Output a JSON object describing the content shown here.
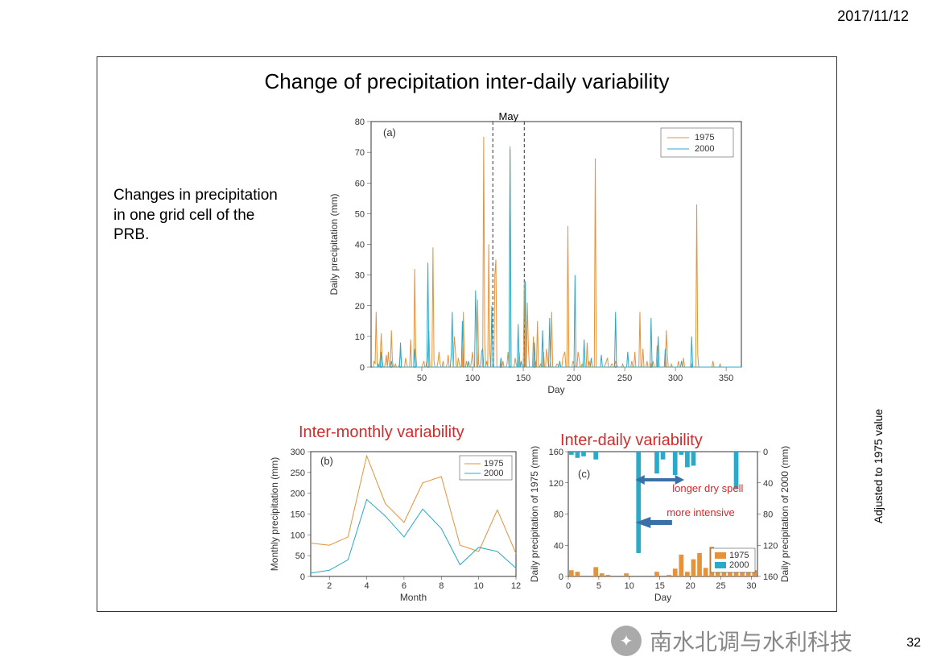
{
  "header": {
    "date": "2017/11/12"
  },
  "slide": {
    "title": "Change of precipitation inter-daily variability",
    "side_note": "Changes in precipitation in one grid cell of the PRB.",
    "page_number": "32"
  },
  "colors": {
    "s1975": "#e5923b",
    "s2000": "#2aa9c9",
    "annotation": "#d12b2b",
    "arrow": "#3b6fa8"
  },
  "chart_a": {
    "type": "line",
    "panel_label": "(a)",
    "top_label": "May",
    "xlabel": "Day",
    "ylabel": "Daily precipitation (mm)",
    "xlim": [
      0,
      365
    ],
    "xtick_step": 50,
    "ylim": [
      0,
      80
    ],
    "ytick_step": 10,
    "series": [
      {
        "name": "1975",
        "color": "#e5923b"
      },
      {
        "name": "2000",
        "color": "#2aa9c9"
      }
    ],
    "highlight_range": [
      120,
      151
    ],
    "data_1975": [
      0,
      0,
      2,
      1,
      18,
      1,
      0,
      0,
      3,
      11,
      2,
      0,
      0,
      1,
      4,
      0,
      5,
      0,
      0,
      12,
      2,
      0,
      0,
      1,
      0,
      0,
      0,
      1,
      6,
      0,
      0,
      0,
      0,
      3,
      1,
      0,
      0,
      0,
      9,
      0,
      0,
      0,
      32,
      5,
      0,
      0,
      0,
      0,
      0,
      0,
      1,
      2,
      0,
      0,
      0,
      4,
      12,
      0,
      0,
      0,
      39,
      2,
      0,
      0,
      0,
      2,
      5,
      1,
      0,
      0,
      2,
      0,
      0,
      0,
      1,
      4,
      0,
      0,
      0,
      0,
      0,
      10,
      6,
      0,
      0,
      3,
      1,
      0,
      0,
      0,
      18,
      0,
      0,
      2,
      0,
      0,
      0,
      0,
      2,
      5,
      0,
      0,
      0,
      0,
      22,
      1,
      0,
      0,
      0,
      0,
      75,
      8,
      0,
      2,
      0,
      40,
      5,
      0,
      0,
      0,
      0,
      30,
      35,
      0,
      0,
      0,
      0,
      1,
      0,
      2,
      0,
      0,
      0,
      1,
      5,
      0,
      72,
      0,
      0,
      0,
      0,
      3,
      1,
      0,
      0,
      5,
      0,
      0,
      0,
      0,
      28,
      0,
      0,
      21,
      7,
      0,
      0,
      0,
      0,
      10,
      0,
      2,
      0,
      15,
      0,
      0,
      1,
      0,
      0,
      5,
      0,
      0,
      6,
      3,
      0,
      0,
      2,
      18,
      0,
      0,
      0,
      0,
      1,
      1,
      0,
      0,
      0,
      0,
      3,
      4,
      5,
      0,
      0,
      46,
      0,
      0,
      0,
      0,
      2,
      1,
      0,
      0,
      0,
      5,
      3,
      0,
      0,
      1,
      0,
      0,
      0,
      0,
      8,
      0,
      2,
      0,
      0,
      0,
      0,
      0,
      68,
      0,
      0,
      0,
      0,
      0,
      0,
      0,
      0,
      0,
      1,
      2,
      3,
      0,
      0,
      0,
      1,
      1,
      0,
      0,
      2,
      1,
      0,
      0,
      0,
      0,
      0,
      1,
      0,
      0,
      0,
      0,
      0,
      0,
      0,
      0,
      2,
      0,
      0,
      5,
      0,
      0,
      0,
      0,
      18,
      0,
      0,
      6,
      0,
      0,
      0,
      2,
      0,
      0,
      0,
      1,
      0,
      2,
      0,
      0,
      0,
      7,
      0,
      0,
      0,
      0,
      0,
      0,
      0,
      0,
      12,
      4,
      0,
      0,
      0,
      1,
      0,
      0,
      0,
      0,
      0,
      0,
      2,
      0,
      0,
      0,
      0,
      3,
      0,
      0,
      0,
      0,
      0,
      0,
      0,
      1,
      0,
      0,
      0,
      0,
      53,
      4,
      0,
      0,
      0,
      0,
      0,
      0,
      0,
      0,
      0,
      0,
      0,
      0,
      0,
      0,
      2,
      0,
      0,
      0,
      0,
      0,
      0,
      1,
      0,
      0,
      0,
      0,
      0,
      0,
      0,
      0,
      0,
      0,
      0,
      0,
      0,
      0,
      0,
      0,
      0,
      0,
      0,
      0,
      0
    ],
    "data_2000": [
      0,
      0,
      0,
      0,
      0,
      0,
      1,
      0,
      0,
      5,
      0,
      0,
      0,
      0,
      0,
      0,
      0,
      0,
      0,
      2,
      0,
      0,
      0,
      0,
      0,
      0,
      0,
      0,
      8,
      0,
      0,
      0,
      0,
      0,
      0,
      0,
      0,
      0,
      0,
      0,
      0,
      0,
      6,
      0,
      0,
      0,
      0,
      0,
      0,
      0,
      0,
      0,
      0,
      0,
      2,
      34,
      0,
      0,
      0,
      0,
      0,
      0,
      0,
      0,
      0,
      0,
      0,
      0,
      0,
      0,
      0,
      0,
      0,
      0,
      0,
      0,
      0,
      0,
      4,
      18,
      0,
      0,
      0,
      0,
      0,
      0,
      0,
      0,
      0,
      15,
      0,
      0,
      0,
      0,
      0,
      2,
      0,
      0,
      0,
      0,
      0,
      0,
      25,
      10,
      0,
      0,
      0,
      0,
      5,
      6,
      0,
      0,
      0,
      0,
      0,
      0,
      0,
      0,
      20,
      0,
      0,
      0,
      0,
      0,
      0,
      0,
      0,
      3,
      0,
      0,
      0,
      0,
      0,
      0,
      0,
      0,
      71,
      0,
      0,
      0,
      0,
      0,
      0,
      0,
      14,
      0,
      0,
      2,
      0,
      0,
      0,
      28,
      0,
      0,
      0,
      0,
      0,
      0,
      0,
      0,
      8,
      0,
      0,
      0,
      0,
      0,
      0,
      0,
      12,
      0,
      0,
      0,
      0,
      0,
      0,
      16,
      0,
      0,
      0,
      0,
      0,
      0,
      0,
      0,
      0,
      2,
      0,
      0,
      0,
      0,
      0,
      0,
      0,
      0,
      0,
      0,
      0,
      0,
      0,
      0,
      30,
      0,
      0,
      0,
      0,
      0,
      0,
      0,
      0,
      9,
      0,
      0,
      0,
      0,
      0,
      0,
      3,
      0,
      0,
      0,
      0,
      0,
      0,
      0,
      0,
      0,
      4,
      0,
      0,
      0,
      0,
      0,
      0,
      0,
      0,
      0,
      0,
      0,
      0,
      0,
      18,
      0,
      0,
      0,
      0,
      0,
      0,
      0,
      0,
      0,
      0,
      0,
      5,
      0,
      0,
      0,
      0,
      0,
      0,
      0,
      0,
      0,
      0,
      0,
      0,
      0,
      0,
      0,
      0,
      0,
      0,
      0,
      0,
      0,
      0,
      16,
      0,
      0,
      0,
      0,
      0,
      0,
      10,
      0,
      0,
      0,
      0,
      0,
      0,
      6,
      0,
      0,
      0,
      0,
      0,
      0,
      0,
      0,
      0,
      0,
      0,
      0,
      0,
      0,
      0,
      2,
      0,
      0,
      0,
      0,
      0,
      0,
      0,
      0,
      0,
      10,
      0,
      0,
      0,
      0,
      0,
      0,
      0,
      0,
      0,
      0,
      0,
      0,
      0,
      0,
      0,
      0,
      0,
      0,
      0,
      0,
      0,
      0,
      0,
      0,
      0,
      0,
      0,
      0,
      0,
      0,
      0,
      0,
      0,
      0,
      0,
      0,
      0,
      0,
      0,
      0,
      0,
      0,
      0,
      0,
      0,
      0,
      0,
      0,
      0
    ]
  },
  "chart_b": {
    "type": "line",
    "label": "Inter-monthly variability",
    "panel_label": "(b)",
    "xlabel": "Month",
    "ylabel": "Monthly precipitation (mm)",
    "xlim": [
      1,
      12
    ],
    "xticks": [
      2,
      4,
      6,
      8,
      10,
      12
    ],
    "ylim": [
      0,
      300
    ],
    "ytick_step": 50,
    "data_1975": [
      80,
      75,
      95,
      290,
      175,
      130,
      225,
      240,
      75,
      60,
      160,
      55
    ],
    "data_2000": [
      8,
      15,
      40,
      185,
      145,
      95,
      162,
      115,
      28,
      70,
      60,
      20
    ]
  },
  "chart_c": {
    "type": "bar-dual",
    "label": "Inter-daily variability",
    "adj_label": "Adjusted to 1975 value",
    "panel_label": "(c)",
    "xlabel": "Day",
    "ylabel_left": "Daily precipitation of 1975 (mm)",
    "ylabel_right": "Daily precipitation of 2000 (mm)",
    "xlim": [
      0,
      31
    ],
    "xtick_step": 5,
    "ylim_left": [
      0,
      160
    ],
    "ytick_left": [
      0,
      40,
      80,
      120,
      160
    ],
    "ylim_right": [
      160,
      0
    ],
    "ytick_right": [
      0,
      40,
      80,
      120,
      160
    ],
    "anno1": "longer dry spell",
    "anno2": "more intensive",
    "data_1975": [
      8,
      6,
      0,
      0,
      12,
      4,
      2,
      0,
      0,
      4,
      0,
      0,
      0,
      0,
      6,
      0,
      2,
      10,
      28,
      6,
      22,
      30,
      11,
      38,
      8,
      22,
      26,
      12,
      6,
      18,
      8
    ],
    "data_2000": [
      4,
      8,
      6,
      0,
      10,
      0,
      0,
      0,
      0,
      0,
      0,
      130,
      0,
      0,
      28,
      10,
      0,
      30,
      4,
      20,
      18,
      0,
      0,
      0,
      0,
      0,
      0,
      48,
      0,
      0,
      0
    ]
  },
  "watermark": {
    "icon": "✦",
    "text": "南水北调与水利科技"
  }
}
